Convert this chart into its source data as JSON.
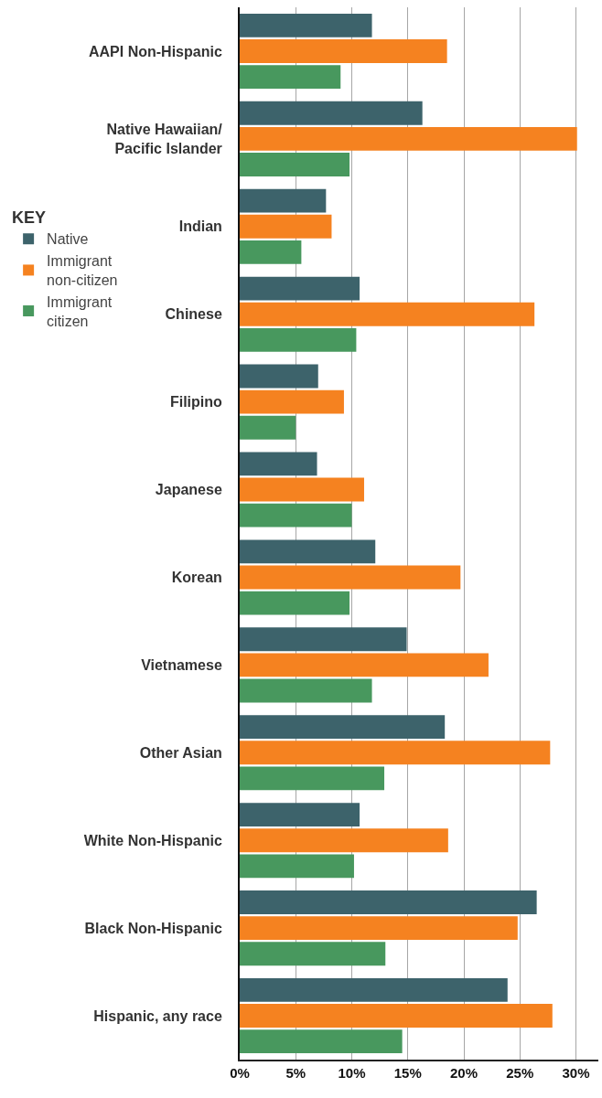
{
  "chart_data": {
    "type": "bar",
    "orientation": "horizontal",
    "categories": [
      "AAPI Non-Hispanic",
      "Native Hawaiian/\nPacific Islander",
      "Indian",
      "Chinese",
      "Filipino",
      "Japanese",
      "Korean",
      "Vietnamese",
      "Other Asian",
      "White Non-Hispanic",
      "Black Non-Hispanic",
      "Hispanic, any race"
    ],
    "series": [
      {
        "name": "Native",
        "color": "#3d636b",
        "values": [
          11.8,
          16.3,
          7.7,
          10.7,
          7.0,
          6.9,
          12.1,
          14.9,
          18.3,
          10.7,
          26.5,
          23.9
        ]
      },
      {
        "name": "Immigrant\nnon-citizen",
        "color": "#f58220",
        "values": [
          18.5,
          30.1,
          8.2,
          26.3,
          9.3,
          11.1,
          19.7,
          22.2,
          27.7,
          18.6,
          24.8,
          27.9
        ]
      },
      {
        "name": "Immigrant\ncitizen",
        "color": "#48985e",
        "values": [
          9.0,
          9.8,
          5.5,
          10.4,
          5.0,
          10.0,
          9.8,
          11.8,
          12.9,
          10.2,
          13.0,
          14.5
        ]
      }
    ],
    "xlim": [
      0,
      32
    ],
    "xticks": [
      {
        "value": 0,
        "label": "0%"
      },
      {
        "value": 5,
        "label": "5%"
      },
      {
        "value": 10,
        "label": "10%"
      },
      {
        "value": 15,
        "label": "15%"
      },
      {
        "value": 20,
        "label": "20%"
      },
      {
        "value": 25,
        "label": "25%"
      },
      {
        "value": 30,
        "label": "30%"
      }
    ],
    "legend_title": "KEY",
    "legend": "left",
    "grid": "x"
  }
}
